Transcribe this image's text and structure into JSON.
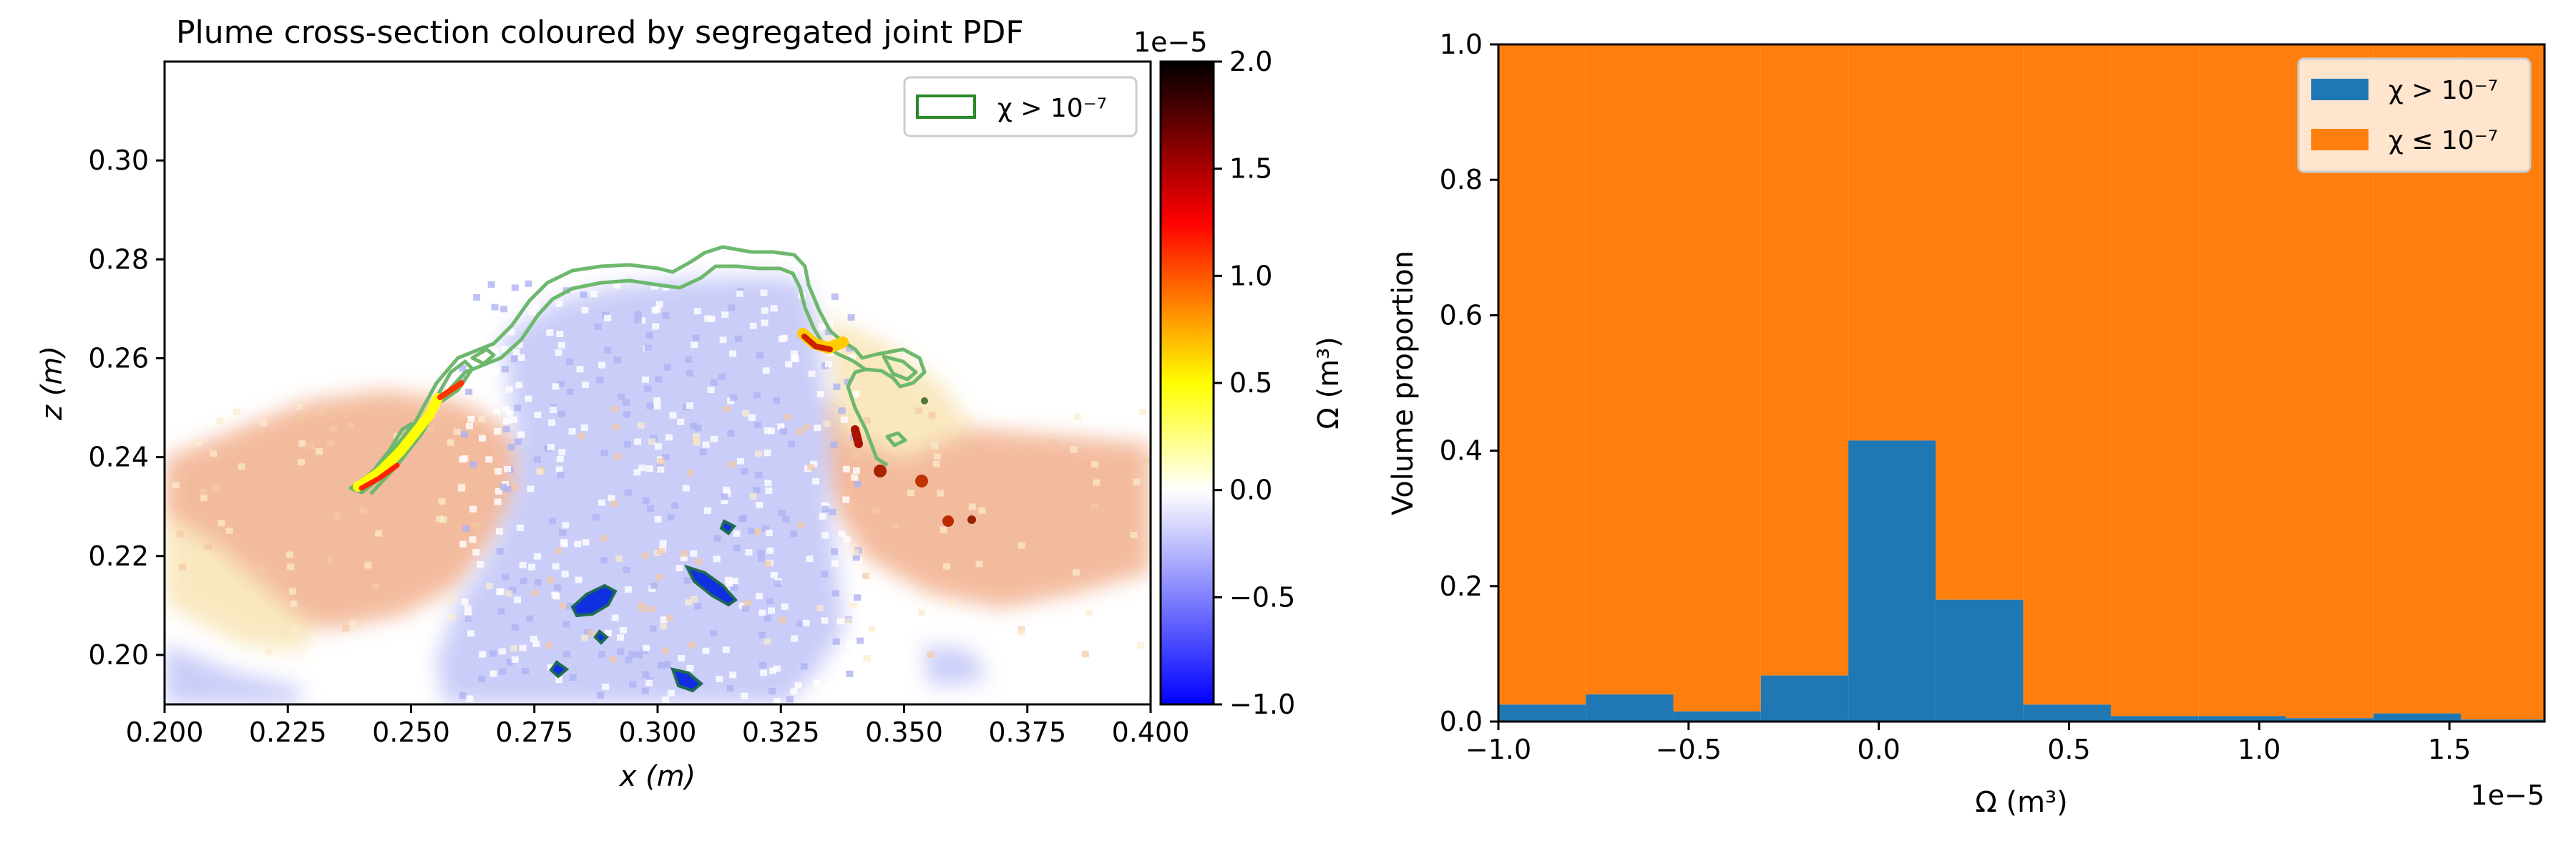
{
  "chart_data": [
    {
      "type": "heatmap",
      "title": "Plume cross-section coloured by segregated joint PDF",
      "xlabel": "x (m)",
      "ylabel": "z (m)",
      "xlim": [
        0.2,
        0.4
      ],
      "ylim": [
        0.19,
        0.32
      ],
      "xticks": [
        "0.200",
        "0.225",
        "0.250",
        "0.275",
        "0.300",
        "0.325",
        "0.350",
        "0.375",
        "0.400"
      ],
      "yticks": [
        "0.20",
        "0.22",
        "0.24",
        "0.26",
        "0.28",
        "0.30"
      ],
      "legend": {
        "entries": [
          "χ > 10⁻⁷"
        ],
        "placement": "top-right"
      },
      "contour_level": "χ > 10⁻⁷",
      "colorbar": {
        "label": "Ω (m³)",
        "scale_label": "1e−5",
        "ticks": [
          "2.0",
          "1.5",
          "1.0",
          "0.5",
          "0.0",
          "−0.5",
          "−1.0"
        ],
        "range": [
          -1.0,
          2.0
        ],
        "colormap": [
          "#0000ff",
          "#ffffff",
          "#ffff00",
          "#ff0000",
          "#000000"
        ]
      },
      "colors": {
        "contour": "#6db86d",
        "negative_region": "#c8cbf8",
        "positive_region": "#f2b08e",
        "weak_region": "#f8e4b5"
      }
    },
    {
      "type": "bar",
      "stacked": true,
      "xlabel": "Ω (m³)",
      "ylabel": "Volume proportion",
      "x_scale_label": "1e−5",
      "xlim": [
        -1.0,
        1.75
      ],
      "ylim": [
        0,
        1.0
      ],
      "xticks": [
        "−1.0",
        "−0.5",
        "0.0",
        "0.5",
        "1.0",
        "1.5"
      ],
      "yticks": [
        "0.0",
        "0.2",
        "0.4",
        "0.6",
        "0.8",
        "1.0"
      ],
      "bin_edges": [
        -1.0,
        -0.77,
        -0.54,
        -0.31,
        -0.08,
        0.15,
        0.38,
        0.61,
        0.84,
        1.07,
        1.3,
        1.53,
        1.75
      ],
      "series": [
        {
          "name": "χ > 10⁻⁷",
          "color": "#1f77b4",
          "values": [
            0.025,
            0.04,
            0.015,
            0.068,
            0.415,
            0.18,
            0.025,
            0.008,
            0.008,
            0.005,
            0.012,
            0.003
          ]
        },
        {
          "name": "χ ≤ 10⁻⁷",
          "color": "#ff7f0e",
          "values": [
            0.975,
            0.96,
            0.985,
            0.932,
            0.585,
            0.82,
            0.975,
            0.992,
            0.992,
            0.995,
            0.988,
            0.997
          ]
        }
      ],
      "legend": {
        "entries": [
          "χ > 10⁻⁷",
          "χ ≤ 10⁻⁷"
        ],
        "placement": "top-right"
      }
    }
  ]
}
